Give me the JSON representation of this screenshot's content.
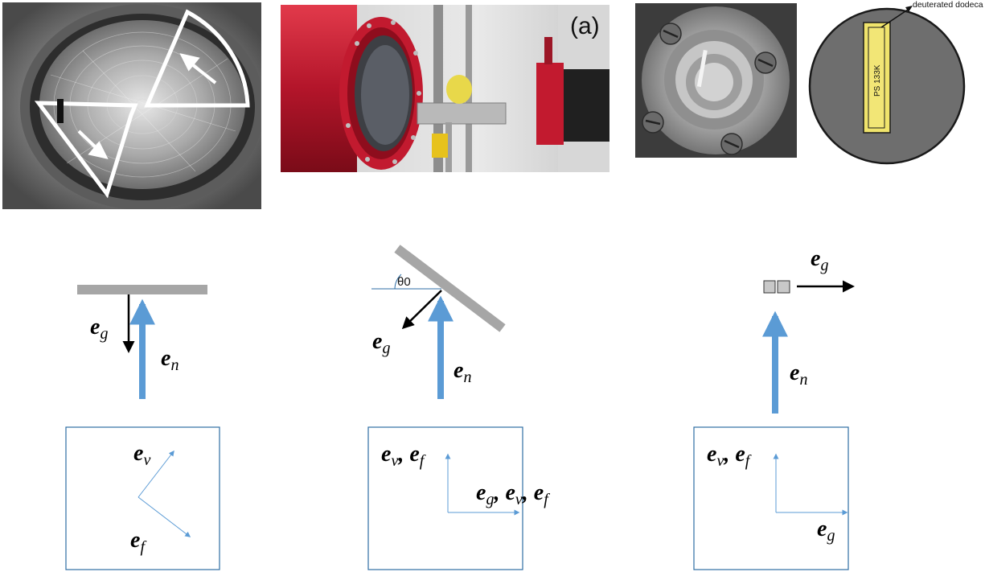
{
  "panels": {
    "photo2": {
      "label": "(a)"
    },
    "schematic": {
      "label": "deuterated dodecane",
      "sample": "PS 133K"
    }
  },
  "diagrams": {
    "left": {
      "eg": {
        "base": "e",
        "sub": "g"
      },
      "en": {
        "base": "e",
        "sub": "n"
      },
      "ev": {
        "base": "e",
        "sub": "v"
      },
      "ef": {
        "base": "e",
        "sub": "f"
      }
    },
    "middle": {
      "theta": "θ0",
      "eg": {
        "base": "e",
        "sub": "g"
      },
      "en": {
        "base": "e",
        "sub": "n"
      },
      "evef": "e_v, e_f",
      "egevef": "e_g, e_v, e_f"
    },
    "right": {
      "eg_top": {
        "base": "e",
        "sub": "g"
      },
      "en": {
        "base": "e",
        "sub": "n"
      },
      "evef": "e_v, e_f",
      "eg_box": {
        "base": "e",
        "sub": "g"
      }
    }
  },
  "colors": {
    "blue": "#5b9bd5",
    "gray": "#a6a6a6",
    "red": "#c0182c"
  }
}
